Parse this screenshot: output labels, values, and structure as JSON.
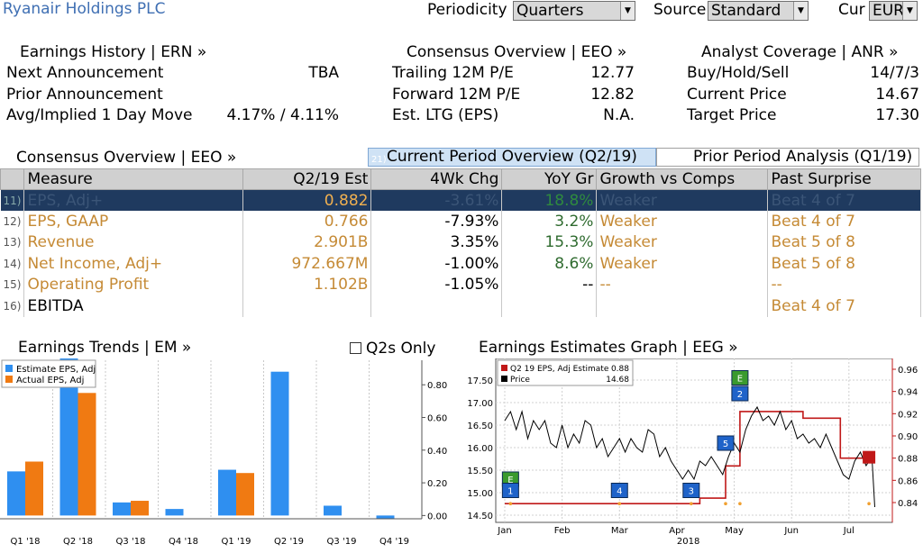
{
  "header": {
    "title": "Ryanair Holdings PLC",
    "periodicity_label": "Periodicity",
    "periodicity_value": "Quarters",
    "source_label": "Source",
    "source_value": "Standard",
    "cur_label": "Cur",
    "cur_value": "EUR"
  },
  "earnings_history": {
    "title": "Earnings History | ERN »",
    "rows": [
      {
        "label": "Next Announcement",
        "value": "TBA"
      },
      {
        "label": "Prior Announcement",
        "value": ""
      },
      {
        "label": "Avg/Implied 1 Day Move",
        "value": "4.17% / 4.11%"
      }
    ]
  },
  "consensus_summary": {
    "title": "Consensus Overview | EEO »",
    "rows": [
      {
        "label": "Trailing 12M P/E",
        "value": "12.77"
      },
      {
        "label": "Forward 12M P/E",
        "value": "12.82"
      },
      {
        "label": "Est. LTG (EPS)",
        "value": "N.A."
      }
    ]
  },
  "analyst_coverage": {
    "title": "Analyst Coverage | ANR »",
    "rows": [
      {
        "label": "Buy/Hold/Sell",
        "value": "14/7/3"
      },
      {
        "label": "Current Price",
        "value": "14.67"
      },
      {
        "label": "Target Price",
        "value": "17.30"
      }
    ]
  },
  "table": {
    "section_title": "Consensus Overview | EEO »",
    "tab_active_num": "21)",
    "tab_active": "Current Period Overview (Q2/19)",
    "tab_inactive": "Prior Period Analysis (Q1/19)",
    "headers": [
      "Measure",
      "Q2/19 Est",
      "4Wk Chg",
      "YoY Gr",
      "Growth vs Comps",
      "Past Surprise"
    ],
    "rows": [
      {
        "idx": "11)",
        "measure": "EPS, Adj+",
        "est": "0.882",
        "chg": "-3.61%",
        "yoy": "18.8%",
        "gvc": "Weaker",
        "past": "Beat 4 of 7"
      },
      {
        "idx": "12)",
        "measure": "EPS, GAAP",
        "est": "0.766",
        "chg": "-7.93%",
        "yoy": "3.2%",
        "gvc": "Weaker",
        "past": "Beat 4 of 7"
      },
      {
        "idx": "13)",
        "measure": "Revenue",
        "est": "2.901B",
        "chg": "3.35%",
        "yoy": "15.3%",
        "gvc": "Weaker",
        "past": "Beat 5 of 8"
      },
      {
        "idx": "14)",
        "measure": "Net Income, Adj+",
        "est": "972.667M",
        "chg": "-1.00%",
        "yoy": "8.6%",
        "gvc": "Weaker",
        "past": "Beat 5 of 8"
      },
      {
        "idx": "15)",
        "measure": "Operating Profit",
        "est": "1.102B",
        "chg": "-1.05%",
        "yoy": "--",
        "gvc": "--",
        "past": "--"
      },
      {
        "idx": "16)",
        "measure": "EBITDA",
        "est": "",
        "chg": "",
        "yoy": "",
        "gvc": "",
        "past": "Beat 4 of 7"
      }
    ]
  },
  "earnings_trends": {
    "title": "Earnings Trends | EM »",
    "checkbox_label": "Q2s Only"
  },
  "estimates_graph": {
    "title": "Earnings Estimates Graph | EEG »"
  },
  "chart_data": [
    {
      "type": "bar",
      "categories": [
        "Q1 '18",
        "Q2 '18",
        "Q3 '18",
        "Q4 '18",
        "Q1 '19",
        "Q2 '19",
        "Q3 '19",
        "Q4 '19"
      ],
      "series": [
        {
          "name": "Estimate EPS, Adj",
          "color": "#2f8ff0",
          "values": [
            0.27,
            1.0,
            0.08,
            0.04,
            0.28,
            0.88,
            0.06,
            -0.02
          ]
        },
        {
          "name": "Actual EPS, Adj",
          "color": "#f07a12",
          "values": [
            0.33,
            0.75,
            0.09,
            null,
            0.26,
            null,
            null,
            null
          ]
        }
      ],
      "ylim": [
        -0.02,
        0.95
      ],
      "yticks": [
        "0.00",
        "0.20",
        "0.40",
        "0.60",
        "0.80"
      ]
    },
    {
      "type": "line",
      "x_labels": [
        "Jan",
        "Feb",
        "Mar",
        "Apr",
        "May",
        "Jun",
        "Jul"
      ],
      "x_year": "2018",
      "left_ticks": [
        "14.50",
        "15.00",
        "15.50",
        "16.00",
        "16.50",
        "17.00",
        "17.50"
      ],
      "right_ticks": [
        "0.84",
        "0.86",
        "0.88",
        "0.90",
        "0.92",
        "0.94",
        "0.96"
      ],
      "legend": [
        {
          "name": "Q2 19 EPS, Adj Estimate",
          "value": "0.88",
          "color": "#c01818"
        },
        {
          "name": "Price",
          "value": "14.68",
          "color": "#000000"
        }
      ],
      "series": [
        {
          "name": "Q2 19 EPS, Adj Estimate",
          "axis": "right",
          "color": "#c01818",
          "points": [
            [
              0,
              0.839
            ],
            [
              0.5,
              0.839
            ],
            [
              3.2,
              0.839
            ],
            [
              3.4,
              0.839
            ],
            [
              3.4,
              0.844
            ],
            [
              3.85,
              0.844
            ],
            [
              3.85,
              0.873
            ],
            [
              4.1,
              0.873
            ],
            [
              4.1,
              0.922
            ],
            [
              5.2,
              0.922
            ],
            [
              5.2,
              0.916
            ],
            [
              5.85,
              0.916
            ],
            [
              5.85,
              0.88
            ],
            [
              6.35,
              0.88
            ]
          ]
        },
        {
          "name": "Price",
          "axis": "left",
          "color": "#000000",
          "points": [
            [
              0,
              16.6
            ],
            [
              0.1,
              16.8
            ],
            [
              0.2,
              16.4
            ],
            [
              0.3,
              16.8
            ],
            [
              0.4,
              16.2
            ],
            [
              0.5,
              16.6
            ],
            [
              0.6,
              16.4
            ],
            [
              0.7,
              16.6
            ],
            [
              0.8,
              16.1
            ],
            [
              0.9,
              16.0
            ],
            [
              1.0,
              16.5
            ],
            [
              1.1,
              16.0
            ],
            [
              1.2,
              16.3
            ],
            [
              1.3,
              16.1
            ],
            [
              1.4,
              16.6
            ],
            [
              1.5,
              16.5
            ],
            [
              1.6,
              16.0
            ],
            [
              1.7,
              16.2
            ],
            [
              1.8,
              15.8
            ],
            [
              1.9,
              16.0
            ],
            [
              2.0,
              16.2
            ],
            [
              2.1,
              15.9
            ],
            [
              2.2,
              16.2
            ],
            [
              2.3,
              16.0
            ],
            [
              2.4,
              15.9
            ],
            [
              2.5,
              16.4
            ],
            [
              2.6,
              16.3
            ],
            [
              2.7,
              15.8
            ],
            [
              2.8,
              16.0
            ],
            [
              2.9,
              15.7
            ],
            [
              3.0,
              15.5
            ],
            [
              3.1,
              15.3
            ],
            [
              3.2,
              15.5
            ],
            [
              3.3,
              15.3
            ],
            [
              3.4,
              15.7
            ],
            [
              3.5,
              15.6
            ],
            [
              3.6,
              15.8
            ],
            [
              3.7,
              15.6
            ],
            [
              3.8,
              15.4
            ],
            [
              3.9,
              15.8
            ],
            [
              4.0,
              16.1
            ],
            [
              4.1,
              15.9
            ],
            [
              4.2,
              16.4
            ],
            [
              4.3,
              16.7
            ],
            [
              4.4,
              16.9
            ],
            [
              4.5,
              16.6
            ],
            [
              4.6,
              16.7
            ],
            [
              4.7,
              16.5
            ],
            [
              4.8,
              16.8
            ],
            [
              4.9,
              16.4
            ],
            [
              5.0,
              16.6
            ],
            [
              5.1,
              16.2
            ],
            [
              5.2,
              16.3
            ],
            [
              5.3,
              16.1
            ],
            [
              5.4,
              16.2
            ],
            [
              5.5,
              16.0
            ],
            [
              5.6,
              16.3
            ],
            [
              5.7,
              16.0
            ],
            [
              5.8,
              15.7
            ],
            [
              5.9,
              15.4
            ],
            [
              6.0,
              15.3
            ],
            [
              6.1,
              15.7
            ],
            [
              6.2,
              15.9
            ],
            [
              6.3,
              15.6
            ],
            [
              6.4,
              15.8
            ],
            [
              6.45,
              14.68
            ]
          ]
        }
      ],
      "markers": [
        {
          "label": "E",
          "color": "#3a9a2e",
          "x": 0.1,
          "y": 15.3
        },
        {
          "label": "1",
          "color": "#1f63c9",
          "x": 0.1,
          "y": 15.05
        },
        {
          "label": "4",
          "color": "#1f63c9",
          "x": 2.0,
          "y": 15.05
        },
        {
          "label": "3",
          "color": "#1f63c9",
          "x": 3.25,
          "y": 15.05
        },
        {
          "label": "5",
          "color": "#1f63c9",
          "x": 3.85,
          "y": 16.1
        },
        {
          "label": "E",
          "color": "#3a9a2e",
          "x": 4.1,
          "y": 17.55
        },
        {
          "label": "2",
          "color": "#1f63c9",
          "x": 4.1,
          "y": 17.2
        }
      ]
    }
  ]
}
